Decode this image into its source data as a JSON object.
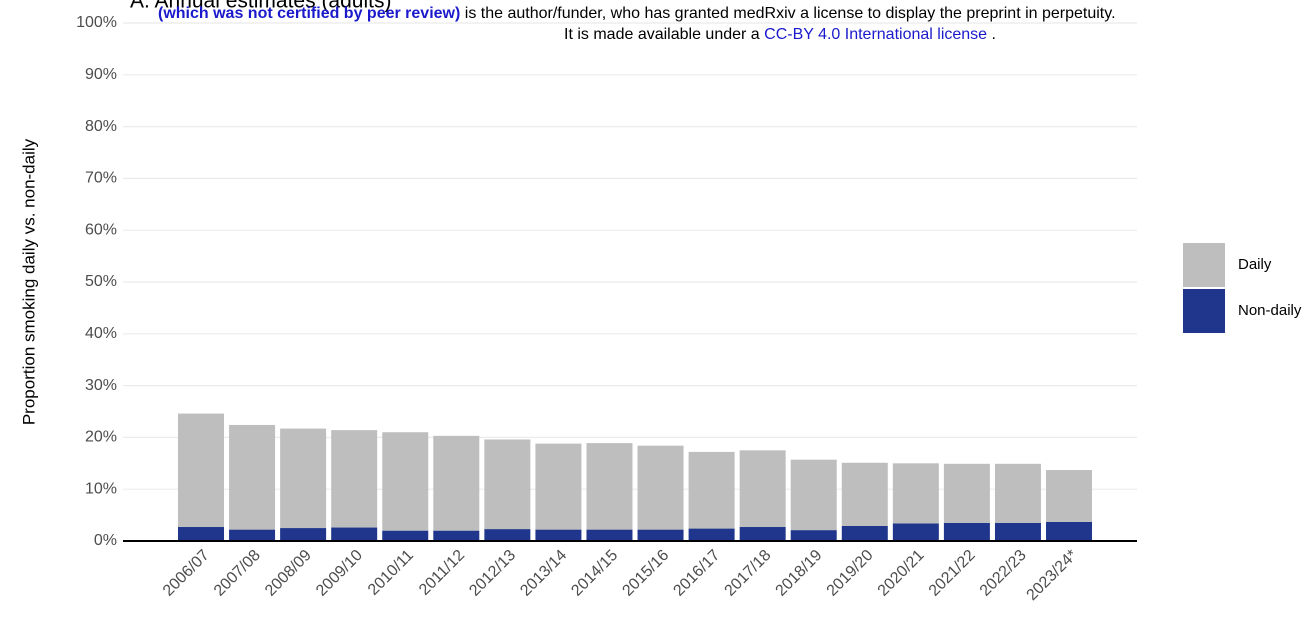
{
  "chart_data": {
    "type": "stacked_bar",
    "title": "A. Annual estimates (adults)",
    "notice": {
      "bold": "(which was not certified by peer review)",
      "rest": "is the author/funder, who has granted medRxiv a license to display the preprint in perpetuity.",
      "line2_start": "It is made available under a",
      "license": "CC-BY 4.0 International license",
      "line2_end": "."
    },
    "y_label": "Proportion smoking daily vs. non-daily",
    "categories": [
      "2006/07",
      "2007/08",
      "2008/09",
      "2009/10",
      "2010/11",
      "2011/12",
      "2012/13",
      "2013/14",
      "2014/15",
      "2015/16",
      "2016/17",
      "2017/18",
      "2018/19",
      "2019/20",
      "2020/21",
      "2021/22",
      "2022/23",
      "2023/24*"
    ],
    "series": [
      {
        "name": "Daily",
        "color": "#bebebe",
        "values": [
          21.9,
          20.2,
          19.2,
          18.8,
          19.0,
          18.3,
          17.3,
          16.6,
          16.7,
          16.2,
          14.8,
          14.8,
          13.6,
          12.2,
          11.6,
          11.4,
          11.4,
          10.0
        ]
      },
      {
        "name": "Non-daily",
        "color": "#1f368c",
        "values": [
          2.7,
          2.2,
          2.5,
          2.6,
          2.0,
          2.0,
          2.3,
          2.2,
          2.2,
          2.2,
          2.4,
          2.7,
          2.1,
          2.9,
          3.4,
          3.5,
          3.5,
          3.7
        ]
      }
    ],
    "stack_order": [
      "Non-daily",
      "Daily"
    ],
    "ylim": [
      0,
      100
    ],
    "yticks": [
      {
        "value": 0,
        "label": "0%"
      },
      {
        "value": 10,
        "label": "10%"
      },
      {
        "value": 20,
        "label": "20%"
      },
      {
        "value": 30,
        "label": "30%"
      },
      {
        "value": 40,
        "label": "40%"
      },
      {
        "value": 50,
        "label": "50%"
      },
      {
        "value": 60,
        "label": "60%"
      },
      {
        "value": 70,
        "label": "70%"
      },
      {
        "value": 80,
        "label": "80%"
      },
      {
        "value": 90,
        "label": "90%"
      },
      {
        "value": 100,
        "label": "100%"
      }
    ],
    "grid": true,
    "legend": "right"
  }
}
